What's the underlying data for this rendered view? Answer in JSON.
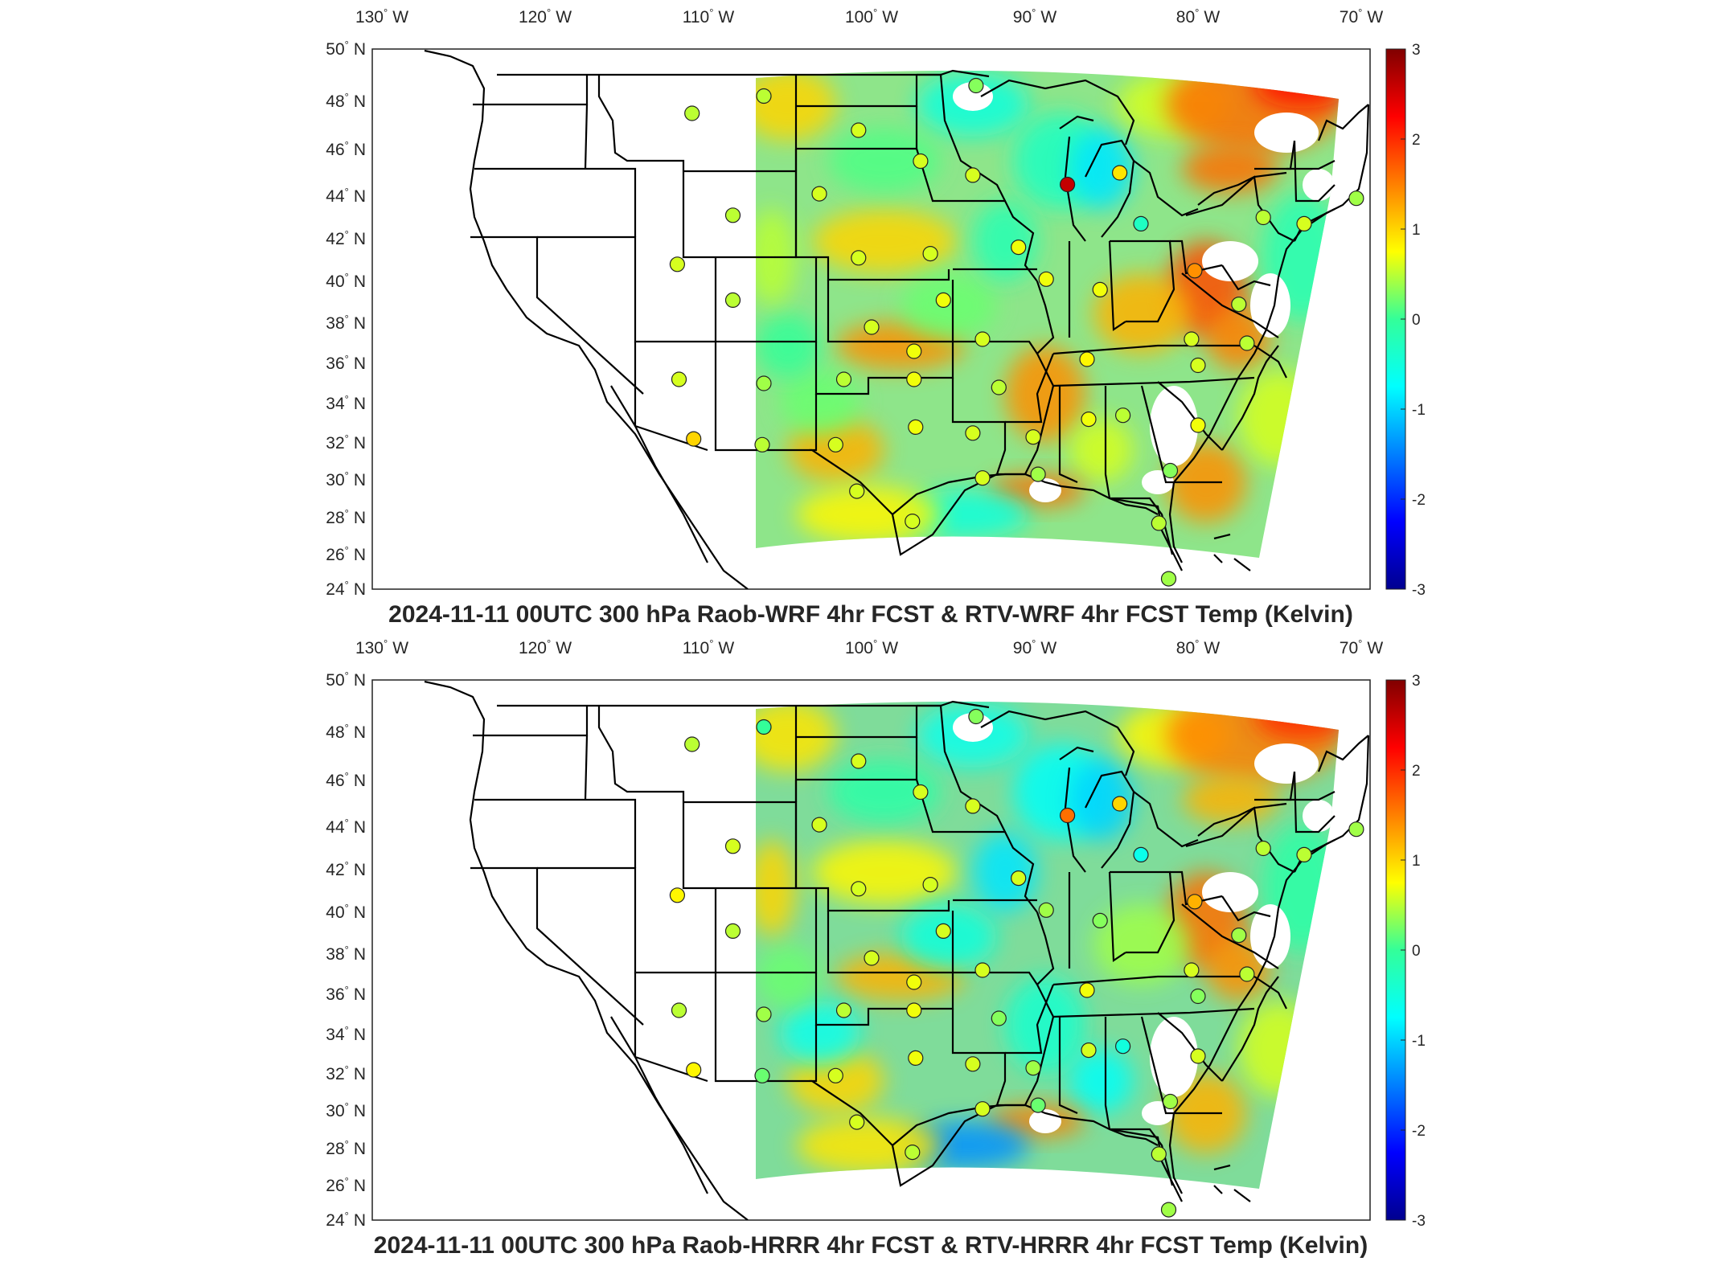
{
  "panels": [
    {
      "title": "2024-11-11 00UTC 300 hPa Raob-WRF 4hr FCST & RTV-WRF 4hr FCST Temp (Kelvin)",
      "lon_ticks": [
        {
          "deg": "130",
          "dir": "W"
        },
        {
          "deg": "120",
          "dir": "W"
        },
        {
          "deg": "110",
          "dir": "W"
        },
        {
          "deg": "100",
          "dir": "W"
        },
        {
          "deg": "90",
          "dir": "W"
        },
        {
          "deg": "80",
          "dir": "W"
        },
        {
          "deg": "70",
          "dir": "W"
        }
      ],
      "lat_ticks": [
        {
          "deg": "50",
          "dir": "N"
        },
        {
          "deg": "48",
          "dir": "N"
        },
        {
          "deg": "46",
          "dir": "N"
        },
        {
          "deg": "44",
          "dir": "N"
        },
        {
          "deg": "42",
          "dir": "N"
        },
        {
          "deg": "40",
          "dir": "N"
        },
        {
          "deg": "38",
          "dir": "N"
        },
        {
          "deg": "36",
          "dir": "N"
        },
        {
          "deg": "34",
          "dir": "N"
        },
        {
          "deg": "32",
          "dir": "N"
        },
        {
          "deg": "30",
          "dir": "N"
        },
        {
          "deg": "28",
          "dir": "N"
        },
        {
          "deg": "26",
          "dir": "N"
        },
        {
          "deg": "24",
          "dir": "N"
        }
      ],
      "colorbar_ticks": [
        "3",
        "2",
        "1",
        "0",
        "-1",
        "-2",
        "-3"
      ],
      "colorbar_range": [
        -3,
        3
      ],
      "map_extent": {
        "lon": [
          -131,
          -69
        ],
        "lat": [
          24,
          50
        ]
      }
    },
    {
      "title": "2024-11-11 00UTC 300 hPa Raob-HRRR 4hr FCST & RTV-HRRR 4hr FCST Temp (Kelvin)",
      "lon_ticks": [
        {
          "deg": "130",
          "dir": "W"
        },
        {
          "deg": "120",
          "dir": "W"
        },
        {
          "deg": "110",
          "dir": "W"
        },
        {
          "deg": "100",
          "dir": "W"
        },
        {
          "deg": "90",
          "dir": "W"
        },
        {
          "deg": "80",
          "dir": "W"
        },
        {
          "deg": "70",
          "dir": "W"
        }
      ],
      "lat_ticks": [
        {
          "deg": "50",
          "dir": "N"
        },
        {
          "deg": "48",
          "dir": "N"
        },
        {
          "deg": "46",
          "dir": "N"
        },
        {
          "deg": "44",
          "dir": "N"
        },
        {
          "deg": "42",
          "dir": "N"
        },
        {
          "deg": "40",
          "dir": "N"
        },
        {
          "deg": "38",
          "dir": "N"
        },
        {
          "deg": "36",
          "dir": "N"
        },
        {
          "deg": "34",
          "dir": "N"
        },
        {
          "deg": "32",
          "dir": "N"
        },
        {
          "deg": "30",
          "dir": "N"
        },
        {
          "deg": "28",
          "dir": "N"
        },
        {
          "deg": "26",
          "dir": "N"
        },
        {
          "deg": "24",
          "dir": "N"
        }
      ],
      "colorbar_ticks": [
        "3",
        "2",
        "1",
        "0",
        "-1",
        "-2",
        "-3"
      ],
      "colorbar_range": [
        -3,
        3
      ],
      "map_extent": {
        "lon": [
          -131,
          -69
        ],
        "lat": [
          24,
          50
        ]
      }
    }
  ],
  "stations": [
    {
      "lon": -111.0,
      "lat": 47.5,
      "v1": 0.5,
      "v2": 0.5
    },
    {
      "lon": -106.6,
      "lat": 48.2,
      "v1": 0.5,
      "v2": 0.0
    },
    {
      "lon": -100.8,
      "lat": 46.8,
      "v1": 0.6,
      "v2": 0.6
    },
    {
      "lon": -97.0,
      "lat": 45.5,
      "v1": 0.6,
      "v2": 0.6
    },
    {
      "lon": -93.6,
      "lat": 48.6,
      "v1": 0.3,
      "v2": 0.3
    },
    {
      "lon": -108.5,
      "lat": 43.1,
      "v1": 0.5,
      "v2": 0.6
    },
    {
      "lon": -103.2,
      "lat": 44.1,
      "v1": 0.6,
      "v2": 0.6
    },
    {
      "lon": -93.8,
      "lat": 44.9,
      "v1": 0.6,
      "v2": 0.6
    },
    {
      "lon": -88.0,
      "lat": 44.5,
      "v1": 2.6,
      "v2": 1.6
    },
    {
      "lon": -84.8,
      "lat": 45.0,
      "v1": 0.9,
      "v2": 1.0
    },
    {
      "lon": -83.5,
      "lat": 42.7,
      "v1": -0.3,
      "v2": -0.6
    },
    {
      "lon": -76.0,
      "lat": 43.0,
      "v1": 0.5,
      "v2": 0.5
    },
    {
      "lon": -73.5,
      "lat": 42.7,
      "v1": 0.6,
      "v2": 0.5
    },
    {
      "lon": -70.3,
      "lat": 43.9,
      "v1": 0.4,
      "v2": 0.4
    },
    {
      "lon": -111.9,
      "lat": 40.8,
      "v1": 0.6,
      "v2": 0.8
    },
    {
      "lon": -108.5,
      "lat": 39.1,
      "v1": 0.5,
      "v2": 0.5
    },
    {
      "lon": -100.8,
      "lat": 41.1,
      "v1": 0.6,
      "v2": 0.6
    },
    {
      "lon": -96.4,
      "lat": 41.3,
      "v1": 0.6,
      "v2": 0.6
    },
    {
      "lon": -91.0,
      "lat": 41.6,
      "v1": 0.7,
      "v2": 0.6
    },
    {
      "lon": -89.3,
      "lat": 40.1,
      "v1": 0.7,
      "v2": 0.4
    },
    {
      "lon": -95.6,
      "lat": 39.1,
      "v1": 0.7,
      "v2": 0.6
    },
    {
      "lon": -86.0,
      "lat": 39.6,
      "v1": 0.7,
      "v2": 0.3
    },
    {
      "lon": -80.2,
      "lat": 40.5,
      "v1": 1.4,
      "v2": 1.2
    },
    {
      "lon": -77.5,
      "lat": 38.9,
      "v1": 0.5,
      "v2": 0.4
    },
    {
      "lon": -100.0,
      "lat": 37.8,
      "v1": 0.6,
      "v2": 0.6
    },
    {
      "lon": -97.4,
      "lat": 36.6,
      "v1": 0.7,
      "v2": 0.7
    },
    {
      "lon": -93.2,
      "lat": 37.2,
      "v1": 0.6,
      "v2": 0.6
    },
    {
      "lon": -86.8,
      "lat": 36.2,
      "v1": 0.8,
      "v2": 0.7
    },
    {
      "lon": -80.4,
      "lat": 37.2,
      "v1": 0.6,
      "v2": 0.6
    },
    {
      "lon": -77.0,
      "lat": 37.0,
      "v1": 0.5,
      "v2": 0.5
    },
    {
      "lon": -80.0,
      "lat": 35.9,
      "v1": 0.6,
      "v2": 0.3
    },
    {
      "lon": -111.8,
      "lat": 35.2,
      "v1": 0.6,
      "v2": 0.5
    },
    {
      "lon": -106.6,
      "lat": 35.0,
      "v1": 0.4,
      "v2": 0.4
    },
    {
      "lon": -101.7,
      "lat": 35.2,
      "v1": 0.5,
      "v2": 0.5
    },
    {
      "lon": -97.4,
      "lat": 35.2,
      "v1": 0.7,
      "v2": 0.7
    },
    {
      "lon": -92.2,
      "lat": 34.8,
      "v1": 0.5,
      "v2": 0.3
    },
    {
      "lon": -84.6,
      "lat": 33.4,
      "v1": 0.5,
      "v2": -0.5
    },
    {
      "lon": -86.7,
      "lat": 33.2,
      "v1": 0.7,
      "v2": 0.6
    },
    {
      "lon": -90.1,
      "lat": 32.3,
      "v1": 0.6,
      "v2": 0.4
    },
    {
      "lon": -93.8,
      "lat": 32.5,
      "v1": 0.6,
      "v2": 0.6
    },
    {
      "lon": -97.3,
      "lat": 32.8,
      "v1": 0.7,
      "v2": 0.7
    },
    {
      "lon": -80.0,
      "lat": 32.9,
      "v1": 0.7,
      "v2": 0.6
    },
    {
      "lon": -110.9,
      "lat": 32.2,
      "v1": 1.0,
      "v2": 0.8
    },
    {
      "lon": -106.7,
      "lat": 31.9,
      "v1": 0.5,
      "v2": 0.2
    },
    {
      "lon": -102.2,
      "lat": 31.9,
      "v1": 0.6,
      "v2": 0.6
    },
    {
      "lon": -93.2,
      "lat": 30.1,
      "v1": 0.6,
      "v2": 0.6
    },
    {
      "lon": -89.8,
      "lat": 30.3,
      "v1": 0.4,
      "v2": 0.2
    },
    {
      "lon": -81.7,
      "lat": 30.5,
      "v1": 0.3,
      "v2": 0.4
    },
    {
      "lon": -100.9,
      "lat": 29.4,
      "v1": 0.6,
      "v2": 0.6
    },
    {
      "lon": -97.5,
      "lat": 27.8,
      "v1": 0.6,
      "v2": 0.5
    },
    {
      "lon": -82.4,
      "lat": 27.7,
      "v1": 0.5,
      "v2": 0.5
    },
    {
      "lon": -81.8,
      "lat": 24.6,
      "v1": 0.4,
      "v2": 0.4
    }
  ]
}
